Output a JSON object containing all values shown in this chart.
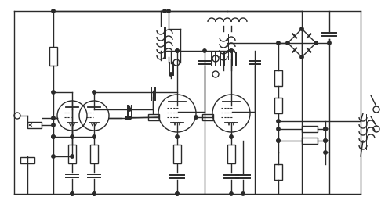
{
  "bg_color": "#ffffff",
  "line_color": "#2a2a2a",
  "lw": 1.0,
  "fig_w": 5.0,
  "fig_h": 2.61,
  "dpi": 100
}
